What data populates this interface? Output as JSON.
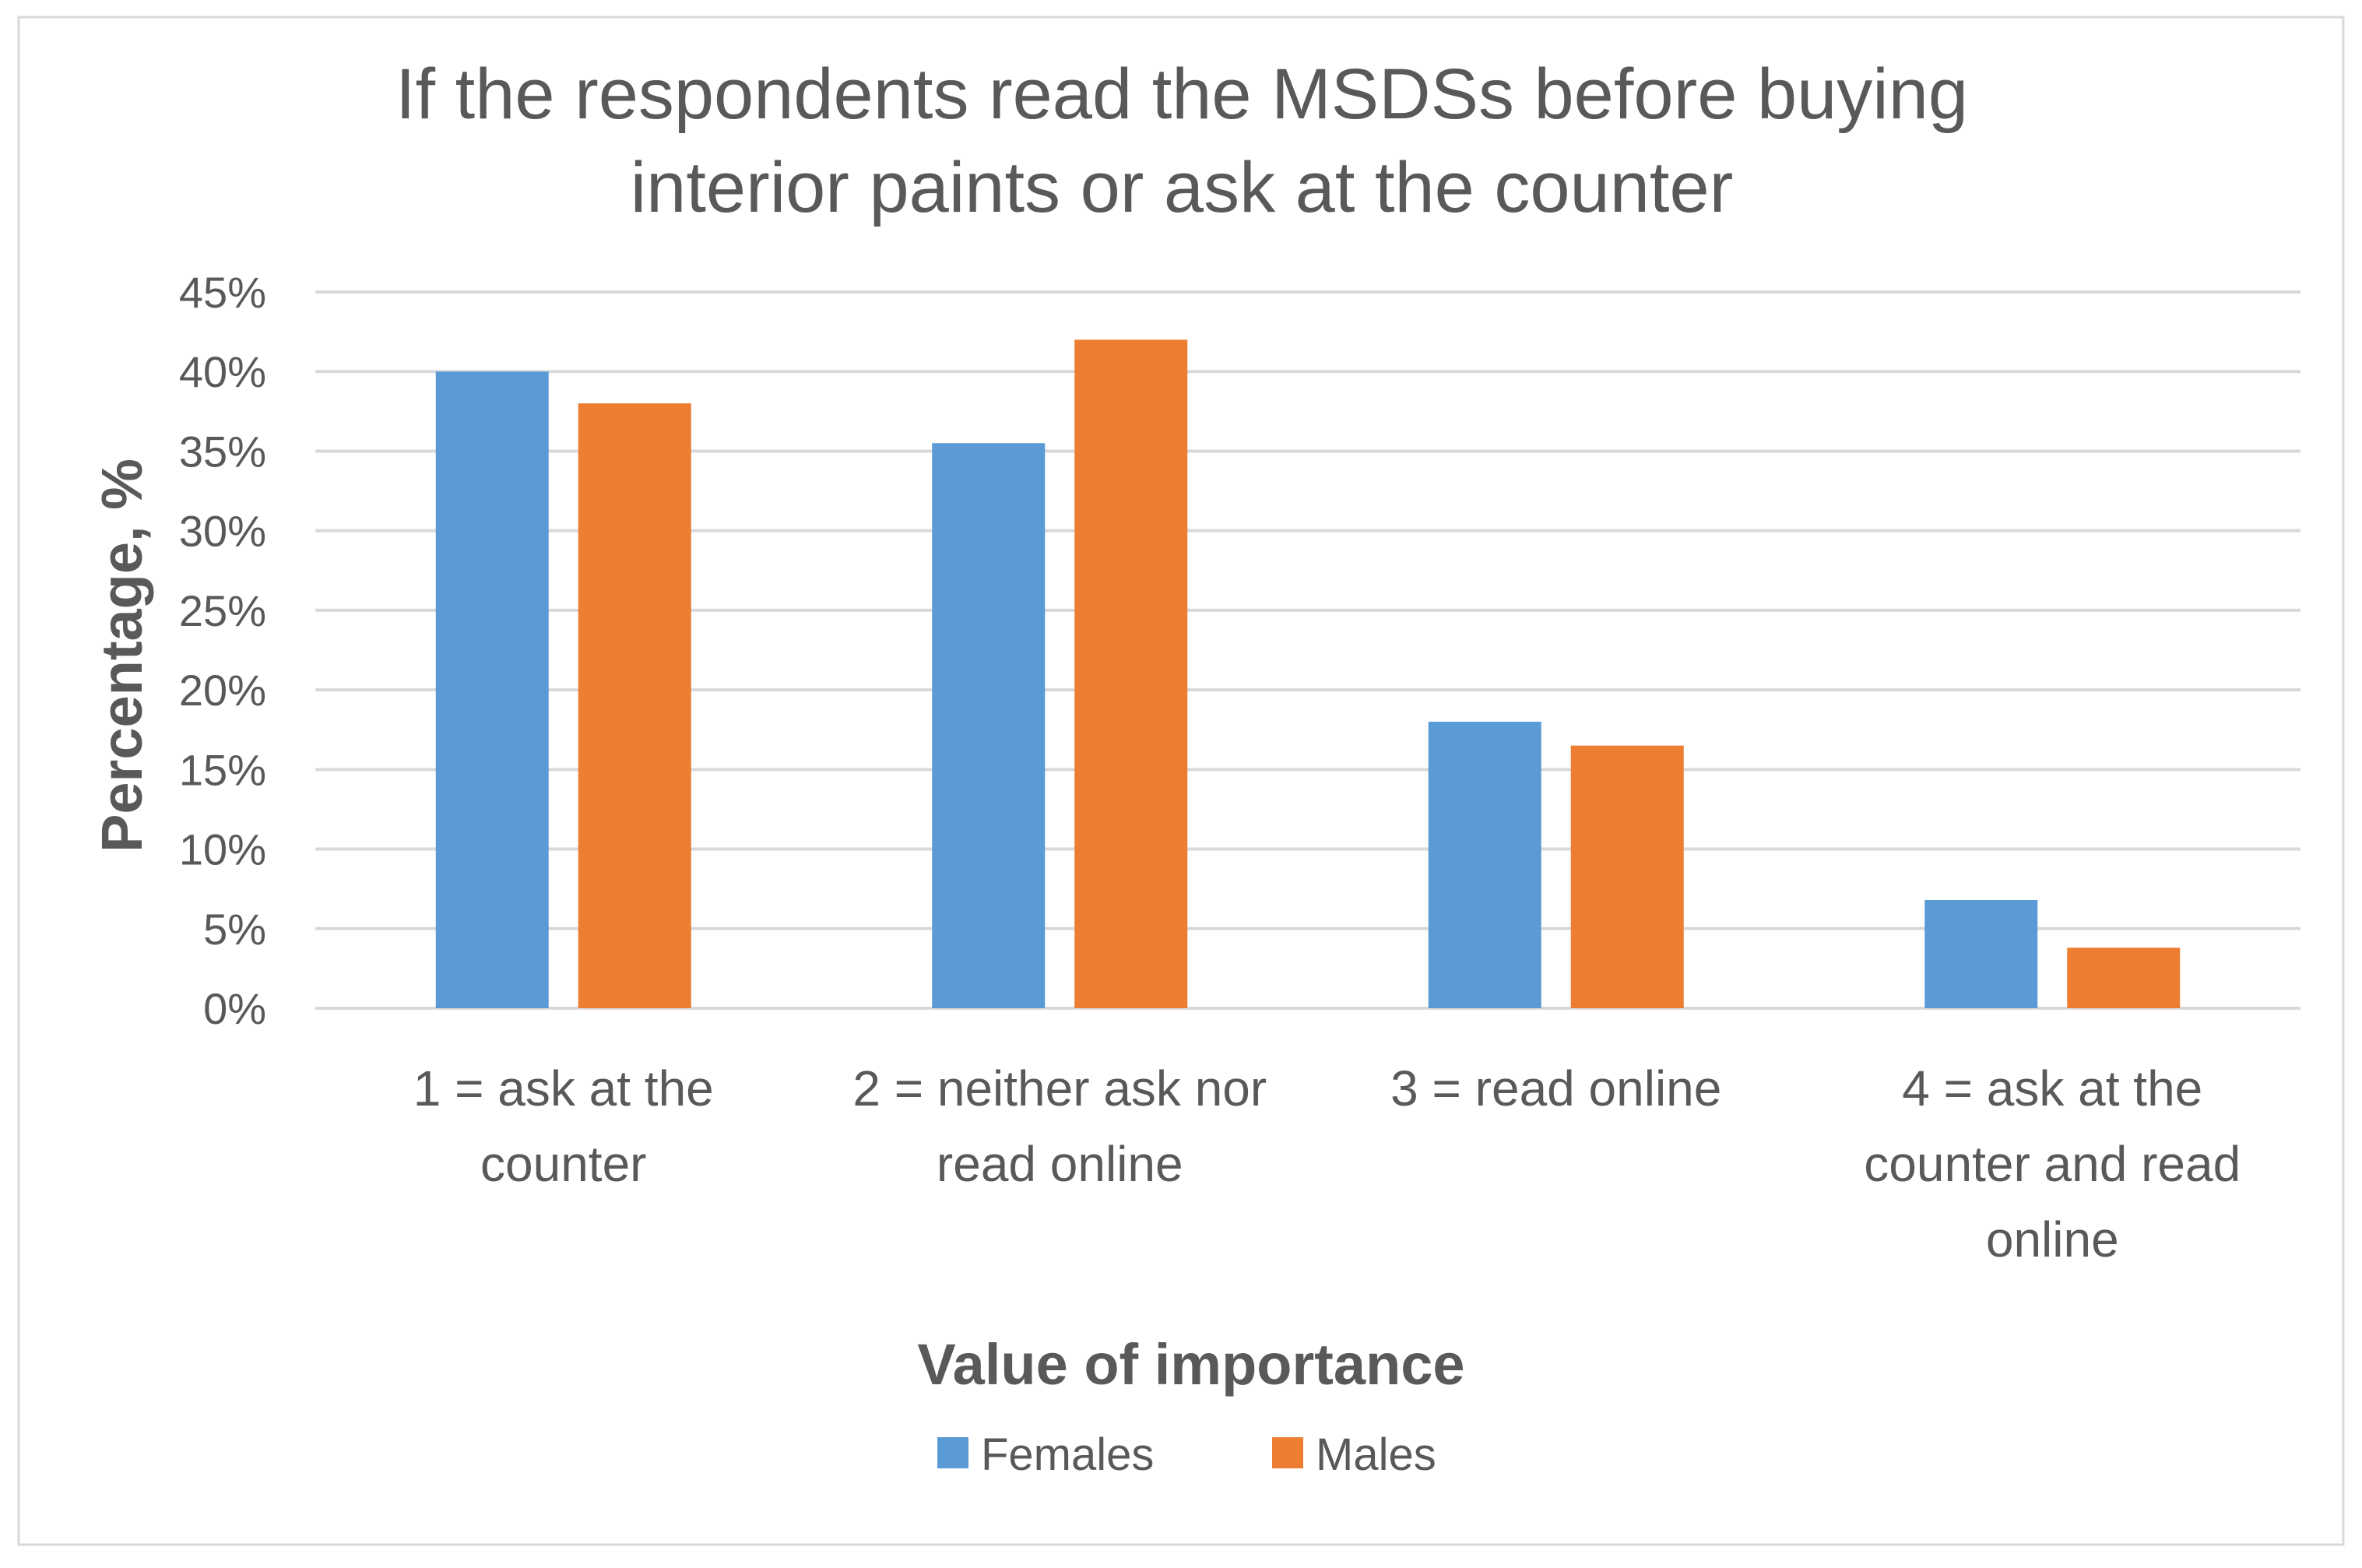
{
  "chart_data": {
    "type": "bar",
    "title_lines": [
      "If the respondents read the MSDSs before buying",
      "interior paints or ask at the counter"
    ],
    "xlabel": "Value of importance",
    "ylabel": "Percentage, %",
    "categories": [
      [
        "1 = ask at the",
        "counter"
      ],
      [
        "2 = neither ask nor",
        "read online"
      ],
      [
        "3 = read online"
      ],
      [
        "4 = ask at the",
        "counter and read",
        "online"
      ]
    ],
    "series": [
      {
        "name": "Females",
        "color": "#5B9BD5",
        "values": [
          40.0,
          35.5,
          18.0,
          6.8
        ]
      },
      {
        "name": "Males",
        "color": "#ED7D31",
        "values": [
          38.0,
          42.0,
          16.5,
          3.8
        ]
      }
    ],
    "ylim": [
      0,
      45
    ],
    "yticks": [
      "0%",
      "5%",
      "10%",
      "15%",
      "20%",
      "25%",
      "30%",
      "35%",
      "40%",
      "45%"
    ],
    "grid": true,
    "legend_position": "bottom"
  }
}
